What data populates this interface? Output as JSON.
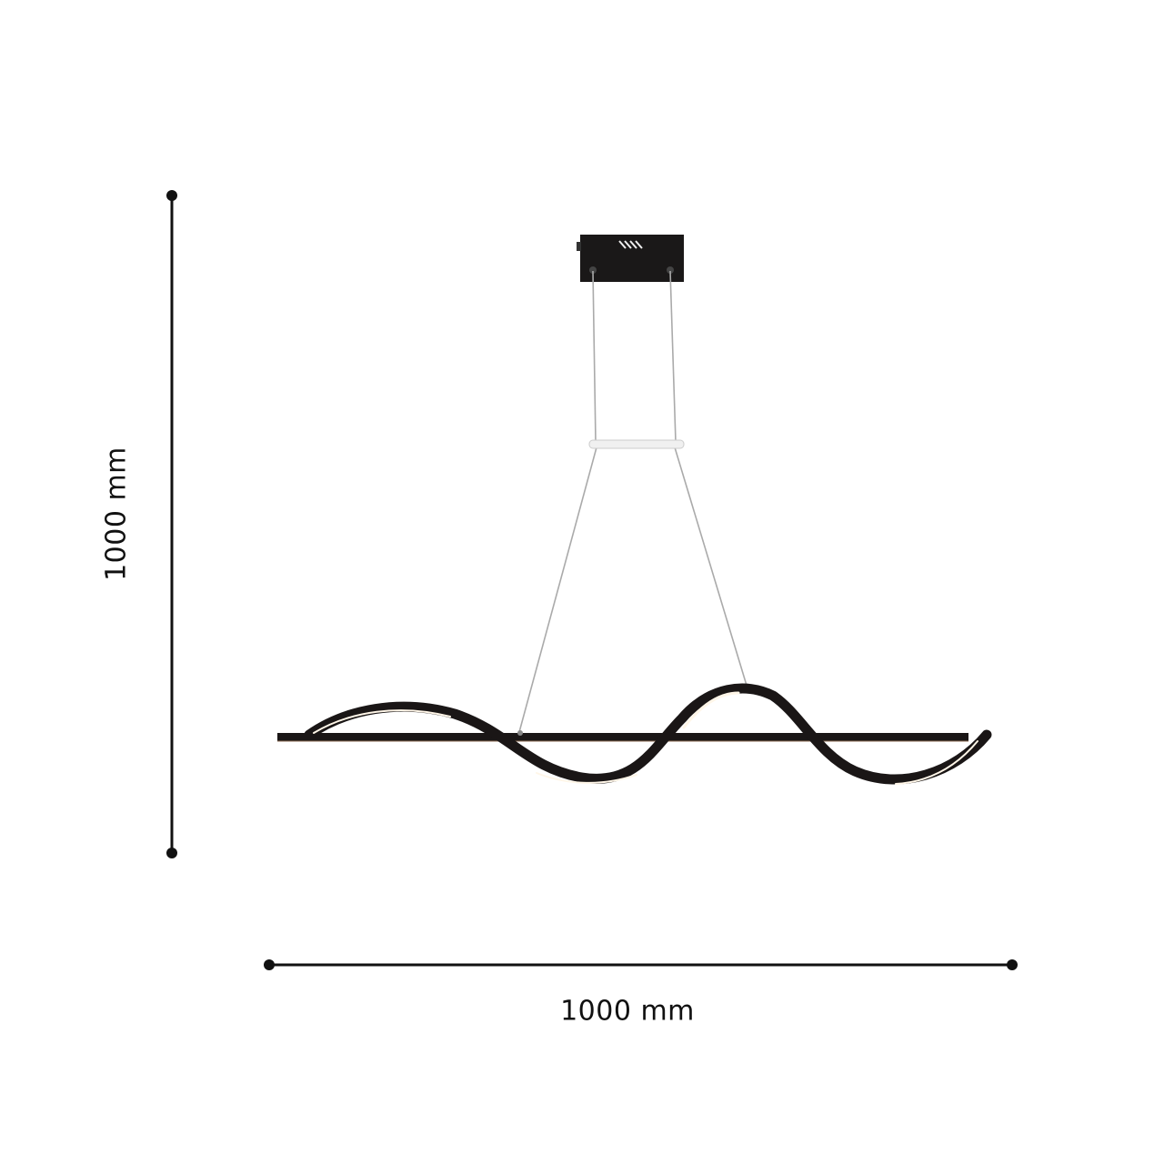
{
  "dimensions": {
    "height_label": "1000 mm",
    "width_label": "1000 mm"
  },
  "product": {
    "type": "wave LED pendant light",
    "color": "#1a1616",
    "light_color": "#fff6e8"
  }
}
